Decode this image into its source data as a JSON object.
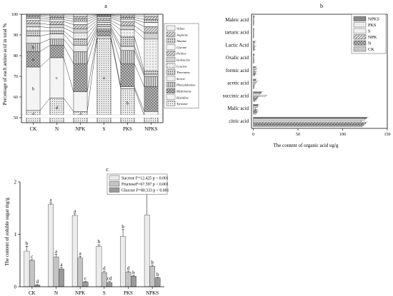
{
  "panel_a_label": "a",
  "panel_b_label": "b",
  "panel_c_label": "c",
  "chart_data": [
    {
      "type": "bar",
      "subtype": "stacked-100",
      "panel": "a",
      "ylabel": "Percentage of each amino acid in total %",
      "ylim": [
        50,
        100
      ],
      "y_ticks": [
        50,
        60,
        70,
        80,
        90,
        100
      ],
      "axis_break": true,
      "categories": [
        "CK",
        "N",
        "NPK",
        "S",
        "PKS",
        "NPKS"
      ],
      "legend": [
        "Valine",
        "Arginine",
        "Alanine",
        "Glycine",
        "Proline",
        "Isoleucine",
        "Leucine",
        "Threonine",
        "Serine",
        "Phenylalanine",
        "Methionine",
        "Histidine",
        "Tyrosine"
      ],
      "legend_position": "right",
      "series": [
        {
          "name": "Tyrosine",
          "cumulative_top": [
            53.5,
            59.5,
            53,
            88.5,
            64,
            51
          ],
          "letters": [
            "d",
            "d",
            "d",
            "a",
            "b",
            "d"
          ],
          "pattern": "dense-dots",
          "fill": "#e2e2e2"
        },
        {
          "name": "Histidine",
          "cumulative_top": [
            74.5,
            79,
            62.5,
            89.5,
            65,
            53
          ],
          "letters": [
            "b",
            "c",
            "",
            "",
            "",
            ""
          ],
          "pattern": "plain",
          "fill": "#f4f4f4"
        },
        {
          "name": "Methionine",
          "cumulative_top": [
            82,
            85,
            76,
            92,
            76,
            65
          ],
          "letters": [
            "a",
            "",
            "",
            "",
            "",
            ""
          ],
          "pattern": "crosshatch",
          "fill": "#9e9e9e"
        },
        {
          "name": "Phenylalanine",
          "cumulative_top": [
            86,
            88,
            82,
            93,
            82.5,
            70
          ],
          "letters": [
            "b",
            "",
            "",
            "",
            "",
            ""
          ],
          "pattern": "vertical",
          "fill": "#c2c2c2"
        },
        {
          "name": "Serine",
          "cumulative_top": [
            89.5,
            90.5,
            85,
            94,
            84.5,
            71
          ],
          "letters": [
            "",
            "",
            "",
            "",
            "",
            ""
          ],
          "pattern": "plain",
          "fill": "#ececec"
        },
        {
          "name": "Threonine",
          "cumulative_top": [
            92,
            92,
            88,
            95,
            89,
            72.5
          ],
          "letters": [
            "",
            "",
            "",
            "",
            "",
            ""
          ],
          "pattern": "dots",
          "fill": "#bdbdbd"
        },
        {
          "name": "Leucine",
          "cumulative_top": [
            94,
            93.5,
            91,
            96,
            92.5,
            88
          ],
          "letters": [
            "",
            "",
            "",
            "",
            "",
            ""
          ],
          "pattern": "light-dots",
          "fill": "#e6e6e6"
        },
        {
          "name": "Isoleucine",
          "cumulative_top": [
            95.5,
            95,
            93,
            97,
            94.5,
            91
          ],
          "letters": [
            "",
            "",
            "",
            "",
            "",
            ""
          ],
          "pattern": "fine-dots",
          "fill": "#d6d6d6"
        },
        {
          "name": "Proline",
          "cumulative_top": [
            97,
            96.5,
            95,
            98,
            96.5,
            94
          ],
          "letters": [
            "",
            "",
            "",
            "",
            "",
            ""
          ],
          "pattern": "diagonal",
          "fill": "#b5b5b5"
        },
        {
          "name": "Glycine",
          "cumulative_top": [
            98,
            97.5,
            96.5,
            98.7,
            97.5,
            96
          ],
          "letters": [
            "",
            "",
            "",
            "",
            "",
            ""
          ],
          "pattern": "plain",
          "fill": "#f6f6f6"
        },
        {
          "name": "Alanine",
          "cumulative_top": [
            98.8,
            98.5,
            97.8,
            99.3,
            98.5,
            97.5
          ],
          "letters": [
            "",
            "",
            "",
            "",
            "",
            ""
          ],
          "pattern": "dots",
          "fill": "#cfcfcf"
        },
        {
          "name": "Arginine",
          "cumulative_top": [
            99.5,
            99.3,
            99,
            99.7,
            99.3,
            99
          ],
          "letters": [
            "",
            "",
            "",
            "",
            "",
            ""
          ],
          "pattern": "diagonal",
          "fill": "#a9a9a9"
        },
        {
          "name": "Valine",
          "cumulative_top": [
            100,
            100,
            100,
            100,
            100,
            100
          ],
          "letters": [
            "",
            "",
            "",
            "",
            "",
            ""
          ],
          "pattern": "plain",
          "fill": "#f0f0f0"
        }
      ],
      "grid": false
    },
    {
      "type": "bar",
      "subtype": "horizontal-grouped",
      "panel": "b",
      "xlabel": "The content of organic acid ug/g",
      "xlim": [
        -2,
        150
      ],
      "x_ticks": [
        0,
        50,
        100,
        150
      ],
      "categories": [
        "Maleic acid",
        "tartaric acid",
        "Lactic Acid",
        "Oxalic acid",
        "formic acid",
        "acetic acid",
        "succinic acid",
        "Malic acid",
        "citric acid"
      ],
      "legend": [
        "NPKS",
        "PKS",
        "S",
        "NPK",
        "N",
        "CK"
      ],
      "legend_position": "top-right",
      "series": [
        {
          "name": "CK",
          "values": [
            0.5,
            0.4,
            1.2,
            0.6,
            1.5,
            0.8,
            2.0,
            3.0,
            122
          ],
          "pattern": "dense-diagonal",
          "fill": "#cfcfcf"
        },
        {
          "name": "N",
          "values": [
            0.6,
            0.5,
            1.0,
            0.7,
            2.0,
            1.0,
            3.5,
            4.0,
            124
          ],
          "pattern": "crosshatch",
          "fill": "#a5a5a5"
        },
        {
          "name": "NPK",
          "values": [
            0.8,
            0.6,
            1.5,
            0.8,
            2.5,
            1.2,
            5.0,
            3.5,
            126
          ],
          "pattern": "diagonal",
          "fill": "#bdbdbd"
        },
        {
          "name": "S",
          "values": [
            0.4,
            0.3,
            0.9,
            0.5,
            1.8,
            2.0,
            14.0,
            2.5,
            121
          ],
          "pattern": "plain",
          "fill": "#f2f2f2"
        },
        {
          "name": "PKS",
          "values": [
            0.7,
            0.5,
            1.1,
            0.6,
            3.0,
            3.5,
            7.0,
            4.5,
            125
          ],
          "pattern": "light",
          "fill": "#e6e6e6"
        },
        {
          "name": "NPKS",
          "values": [
            0.9,
            0.7,
            1.4,
            0.9,
            2.2,
            2.5,
            9.0,
            5.0,
            127
          ],
          "pattern": "dark",
          "fill": "#8e8e8e"
        }
      ],
      "grid": false
    },
    {
      "type": "bar",
      "subtype": "grouped",
      "panel": "c",
      "ylabel": "The content of soluble sugar  mg/g",
      "ylim": [
        0,
        2
      ],
      "y_ticks": [
        0,
        1,
        2
      ],
      "categories": [
        "CK",
        "N",
        "NPK",
        "S",
        "PKS",
        "NPKS"
      ],
      "legend": [
        "Sucrose F=12.425 p < 0.001",
        "FructoseF=67.597 p < 0.001",
        "Glucose F=80.333 p < 0.001"
      ],
      "legend_position": "top",
      "series": [
        {
          "name": "Sucrose",
          "values": [
            0.68,
            1.57,
            1.36,
            0.77,
            0.96,
            1.37
          ],
          "errors": [
            0.09,
            0.03,
            0.03,
            0.03,
            0.13,
            0.4
          ],
          "letters": [
            "b",
            "a",
            "a",
            "b",
            "b",
            "a"
          ],
          "fill": "#ececec"
        },
        {
          "name": "Fructose",
          "values": [
            0.5,
            0.57,
            0.55,
            0.27,
            0.28,
            0.39
          ],
          "errors": [
            0.02,
            0.05,
            0.03,
            0.02,
            0.02,
            0.02
          ],
          "letters": [
            "c",
            "a",
            "a",
            "d",
            "d",
            "b"
          ],
          "fill": "#c4c4c4"
        },
        {
          "name": "Glucose",
          "values": [
            0.03,
            0.34,
            0.09,
            0.08,
            0.2,
            0.17
          ],
          "errors": [
            0.01,
            0.03,
            0.01,
            0.02,
            0.01,
            0.01
          ],
          "letters": [
            "d",
            "a",
            "c",
            "cd",
            "b",
            "b"
          ],
          "fill": "#9a9a9a"
        }
      ],
      "grid": false
    }
  ]
}
